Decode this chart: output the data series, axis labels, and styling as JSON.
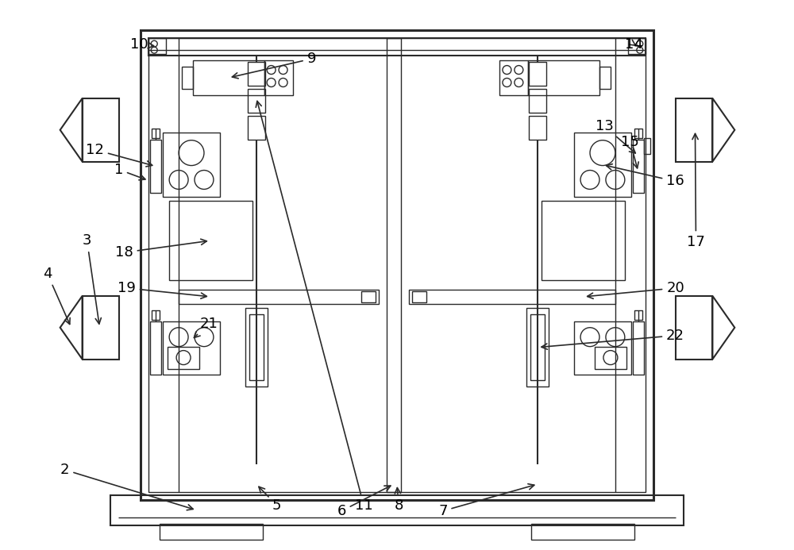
{
  "bg_color": "#ffffff",
  "line_color": "#2a2a2a",
  "lw_thin": 1.0,
  "lw_med": 1.5,
  "lw_thick": 2.2
}
